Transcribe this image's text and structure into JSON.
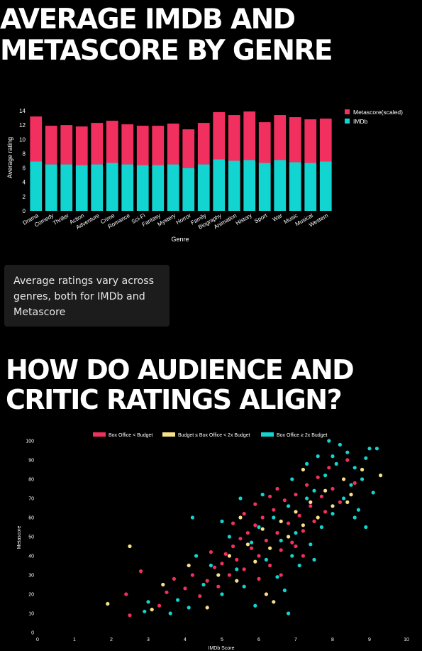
{
  "section1": {
    "title_line1": "AVERAGE IMDB AND",
    "title_line2": "METASCORE BY GENRE",
    "note": "Average ratings vary across genres, both for IMDb and Metascore"
  },
  "section2": {
    "title_line1": "HOW DO AUDIENCE AND",
    "title_line2": "CRITIC RATINGS ALIGN?"
  },
  "colors": {
    "pink": "#f2305f",
    "teal": "#12d4d0",
    "yellow": "#f8e088"
  },
  "chart_data": [
    {
      "type": "bar",
      "stacked": true,
      "categories": [
        "Drama",
        "Comedy",
        "Thriller",
        "Action",
        "Adventure",
        "Crime",
        "Romance",
        "Sci-Fi",
        "Fantasy",
        "Mystery",
        "Horror",
        "Family",
        "Biography",
        "Animation",
        "History",
        "Sport",
        "War",
        "Music",
        "Musical",
        "Western"
      ],
      "series": [
        {
          "name": "IMDb",
          "color": "#12d4d0",
          "values": [
            6.9,
            6.5,
            6.5,
            6.4,
            6.5,
            6.7,
            6.5,
            6.4,
            6.4,
            6.5,
            6.0,
            6.5,
            7.2,
            7.0,
            7.1,
            6.7,
            7.1,
            6.8,
            6.7,
            6.9
          ]
        },
        {
          "name": "Metascore(scaled)",
          "color": "#f2305f",
          "values": [
            6.3,
            5.4,
            5.5,
            5.4,
            5.8,
            5.9,
            5.6,
            5.5,
            5.5,
            5.7,
            5.4,
            5.8,
            6.6,
            6.4,
            6.8,
            5.7,
            6.3,
            6.3,
            6.1,
            6.0
          ]
        }
      ],
      "xlabel": "Genre",
      "ylabel": "Average rating",
      "ylim": [
        0,
        14
      ],
      "yticks": [
        0,
        2,
        4,
        6,
        8,
        10,
        12,
        14
      ],
      "legend": "top-right"
    },
    {
      "type": "scatter",
      "xlabel": "IMDb Score",
      "ylabel": "Metascore",
      "xlim": [
        0,
        10
      ],
      "ylim": [
        0,
        100
      ],
      "xticks": [
        0,
        1,
        2,
        3,
        4,
        5,
        6,
        7,
        8,
        9,
        10
      ],
      "yticks": [
        0,
        10,
        20,
        30,
        40,
        50,
        60,
        70,
        80,
        90,
        100
      ],
      "legend": "top",
      "series": [
        {
          "name": "Box Office < Budget",
          "color": "#f2305f",
          "points": [
            [
              2.5,
              9
            ],
            [
              2.4,
              20
            ],
            [
              2.8,
              32
            ],
            [
              3.3,
              14
            ],
            [
              3.5,
              21
            ],
            [
              3.7,
              28
            ],
            [
              4.0,
              23
            ],
            [
              4.2,
              30
            ],
            [
              4.4,
              19
            ],
            [
              4.6,
              27
            ],
            [
              4.8,
              34
            ],
            [
              4.9,
              24
            ],
            [
              5.0,
              36
            ],
            [
              5.1,
              41
            ],
            [
              5.2,
              30
            ],
            [
              5.3,
              45
            ],
            [
              5.4,
              38
            ],
            [
              5.5,
              49
            ],
            [
              5.6,
              33
            ],
            [
              5.7,
              52
            ],
            [
              5.8,
              44
            ],
            [
              5.9,
              56
            ],
            [
              6.0,
              40
            ],
            [
              6.1,
              60
            ],
            [
              6.2,
              48
            ],
            [
              6.3,
              35
            ],
            [
              6.4,
              64
            ],
            [
              6.5,
              52
            ],
            [
              6.6,
              43
            ],
            [
              6.7,
              69
            ],
            [
              6.8,
              57
            ],
            [
              6.9,
              47
            ],
            [
              7.0,
              72
            ],
            [
              7.1,
              61
            ],
            [
              7.2,
              53
            ],
            [
              7.3,
              77
            ],
            [
              7.4,
              66
            ],
            [
              7.5,
              58
            ],
            [
              7.6,
              81
            ],
            [
              7.7,
              71
            ],
            [
              7.8,
              63
            ],
            [
              7.9,
              86
            ],
            [
              8.0,
              75
            ],
            [
              8.2,
              68
            ],
            [
              8.4,
              90
            ],
            [
              8.6,
              78
            ],
            [
              5.6,
              62
            ],
            [
              6.0,
              28
            ],
            [
              6.3,
              71
            ],
            [
              6.6,
              30
            ],
            [
              7.0,
              45
            ],
            [
              5.9,
              67
            ],
            [
              6.5,
              75
            ],
            [
              7.2,
              40
            ],
            [
              4.7,
              42
            ],
            [
              5.3,
              57
            ]
          ]
        },
        {
          "name": "Budget ≤ Box Office < 2x Budget",
          "color": "#f8e088",
          "points": [
            [
              1.9,
              15
            ],
            [
              2.5,
              45
            ],
            [
              3.1,
              12
            ],
            [
              3.4,
              25
            ],
            [
              4.1,
              35
            ],
            [
              4.6,
              13
            ],
            [
              4.9,
              30
            ],
            [
              5.2,
              40
            ],
            [
              5.4,
              27
            ],
            [
              5.7,
              46
            ],
            [
              5.9,
              37
            ],
            [
              6.1,
              54
            ],
            [
              6.3,
              44
            ],
            [
              6.4,
              16
            ],
            [
              6.6,
              58
            ],
            [
              6.8,
              50
            ],
            [
              7.0,
              63
            ],
            [
              7.2,
              56
            ],
            [
              7.4,
              68
            ],
            [
              7.6,
              60
            ],
            [
              7.8,
              74
            ],
            [
              8.0,
              66
            ],
            [
              8.3,
              80
            ],
            [
              8.5,
              72
            ],
            [
              8.8,
              85
            ],
            [
              9.3,
              82
            ],
            [
              8.4,
              68
            ],
            [
              7.2,
              85
            ],
            [
              6.2,
              20
            ],
            [
              5.5,
              60
            ]
          ]
        },
        {
          "name": "Box Office ≥ 2x Budget",
          "color": "#12d4d0",
          "points": [
            [
              2.9,
              11
            ],
            [
              3.0,
              16
            ],
            [
              3.6,
              10
            ],
            [
              3.8,
              17
            ],
            [
              4.1,
              13
            ],
            [
              4.3,
              40
            ],
            [
              4.5,
              25
            ],
            [
              4.7,
              35
            ],
            [
              5.0,
              20
            ],
            [
              5.2,
              50
            ],
            [
              5.4,
              33
            ],
            [
              5.6,
              24
            ],
            [
              5.8,
              47
            ],
            [
              6.0,
              55
            ],
            [
              6.2,
              38
            ],
            [
              6.4,
              60
            ],
            [
              6.6,
              48
            ],
            [
              6.7,
              22
            ],
            [
              6.8,
              66
            ],
            [
              7.0,
              52
            ],
            [
              7.1,
              35
            ],
            [
              7.3,
              70
            ],
            [
              7.4,
              46
            ],
            [
              7.5,
              74
            ],
            [
              7.7,
              55
            ],
            [
              7.8,
              82
            ],
            [
              8.0,
              62
            ],
            [
              8.1,
              88
            ],
            [
              8.3,
              70
            ],
            [
              8.4,
              94
            ],
            [
              8.5,
              77
            ],
            [
              8.6,
              86
            ],
            [
              8.7,
              64
            ],
            [
              8.9,
              91
            ],
            [
              9.0,
              96
            ],
            [
              9.1,
              73
            ],
            [
              8.8,
              80
            ],
            [
              8.2,
              98
            ],
            [
              8.0,
              92
            ],
            [
              7.9,
              100
            ],
            [
              8.6,
              60
            ],
            [
              8.9,
              55
            ],
            [
              9.2,
              96
            ],
            [
              6.5,
              29
            ],
            [
              5.9,
              14
            ],
            [
              6.9,
              40
            ],
            [
              7.3,
              88
            ],
            [
              7.6,
              92
            ],
            [
              6.1,
              72
            ],
            [
              5.0,
              58
            ],
            [
              4.2,
              60
            ],
            [
              6.8,
              10
            ],
            [
              7.5,
              38
            ],
            [
              5.5,
              70
            ],
            [
              6.9,
              80
            ]
          ]
        }
      ]
    }
  ]
}
